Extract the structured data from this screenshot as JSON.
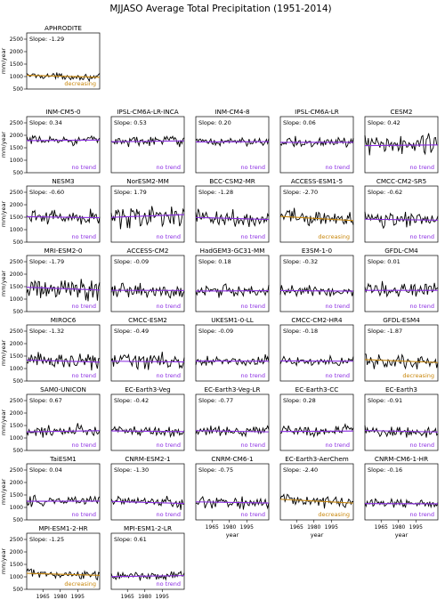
{
  "figure": {
    "title": "MJJASO Average Total Precipitation (1951-2014)",
    "ylabel": "mm/year",
    "xlabel": "year"
  },
  "chart_data": {
    "type": "line",
    "x_range": [
      1951,
      2014
    ],
    "ylim": [
      500,
      2750
    ],
    "xticks": [
      1965,
      1980,
      1995
    ],
    "yticks": [
      500,
      1000,
      1500,
      2000,
      2500
    ],
    "colors": {
      "series": "#000000",
      "no_trend": "#8a2be2",
      "decreasing": "#c8860a"
    },
    "panels": [
      {
        "name": "APHRODITE",
        "slope_label": "Slope: -1.29",
        "trend": "decreasing",
        "mean": 1010,
        "amp": 60,
        "slope": -1.29
      },
      {
        "name": "INM-CM5-0",
        "slope_label": "Slope: 0.34",
        "trend": "no trend",
        "mean": 1800,
        "amp": 90,
        "slope": 0.34
      },
      {
        "name": "IPSL-CM6A-LR-INCA",
        "slope_label": "Slope: 0.53",
        "trend": "no trend",
        "mean": 1760,
        "amp": 110,
        "slope": 0.53
      },
      {
        "name": "INM-CM4-8",
        "slope_label": "Slope: 0.20",
        "trend": "no trend",
        "mean": 1740,
        "amp": 85,
        "slope": 0.2
      },
      {
        "name": "IPSL-CM6A-LR",
        "slope_label": "Slope: 0.06",
        "trend": "no trend",
        "mean": 1720,
        "amp": 100,
        "slope": 0.06
      },
      {
        "name": "CESM2",
        "slope_label": "Slope: 0.42",
        "trend": "no trend",
        "mean": 1600,
        "amp": 230,
        "slope": 0.42
      },
      {
        "name": "NESM3",
        "slope_label": "Slope: -0.60",
        "trend": "no trend",
        "mean": 1500,
        "amp": 150,
        "slope": -0.6
      },
      {
        "name": "NorESM2-MM",
        "slope_label": "Slope: 1.79",
        "trend": "no trend",
        "mean": 1550,
        "amp": 230,
        "slope": 1.79
      },
      {
        "name": "BCC-CSM2-MR",
        "slope_label": "Slope: -1.28",
        "trend": "no trend",
        "mean": 1450,
        "amp": 160,
        "slope": -1.28
      },
      {
        "name": "ACCESS-ESM1-5",
        "slope_label": "Slope: -2.70",
        "trend": "decreasing",
        "mean": 1450,
        "amp": 180,
        "slope": -2.7
      },
      {
        "name": "CMCC-CM2-SR5",
        "slope_label": "Slope: -0.62",
        "trend": "no trend",
        "mean": 1400,
        "amp": 130,
        "slope": -0.62
      },
      {
        "name": "MRI-ESM2-0",
        "slope_label": "Slope: -1.79",
        "trend": "no trend",
        "mean": 1420,
        "amp": 200,
        "slope": -1.79
      },
      {
        "name": "ACCESS-CM2",
        "slope_label": "Slope: -0.09",
        "trend": "no trend",
        "mean": 1350,
        "amp": 130,
        "slope": -0.09
      },
      {
        "name": "HadGEM3-GC31-MM",
        "slope_label": "Slope: 0.18",
        "trend": "no trend",
        "mean": 1330,
        "amp": 110,
        "slope": 0.18
      },
      {
        "name": "E3SM-1-0",
        "slope_label": "Slope: -0.32",
        "trend": "no trend",
        "mean": 1330,
        "amp": 100,
        "slope": -0.32
      },
      {
        "name": "GFDL-CM4",
        "slope_label": "Slope: 0.01",
        "trend": "no trend",
        "mean": 1350,
        "amp": 170,
        "slope": 0.01
      },
      {
        "name": "MIROC6",
        "slope_label": "Slope: -1.32",
        "trend": "no trend",
        "mean": 1300,
        "amp": 160,
        "slope": -1.32
      },
      {
        "name": "CMCC-ESM2",
        "slope_label": "Slope: -0.49",
        "trend": "no trend",
        "mean": 1280,
        "amp": 150,
        "slope": -0.49
      },
      {
        "name": "UKESM1-0-LL",
        "slope_label": "Slope: -0.09",
        "trend": "no trend",
        "mean": 1300,
        "amp": 100,
        "slope": -0.09
      },
      {
        "name": "CMCC-CM2-HR4",
        "slope_label": "Slope: -0.18",
        "trend": "no trend",
        "mean": 1300,
        "amp": 110,
        "slope": -0.18
      },
      {
        "name": "GFDL-ESM4",
        "slope_label": "Slope: -1.87",
        "trend": "decreasing",
        "mean": 1300,
        "amp": 160,
        "slope": -1.87
      },
      {
        "name": "SAM0-UNICON",
        "slope_label": "Slope: 0.67",
        "trend": "no trend",
        "mean": 1270,
        "amp": 110,
        "slope": 0.67
      },
      {
        "name": "EC-Earth3-Veg",
        "slope_label": "Slope: -0.42",
        "trend": "no trend",
        "mean": 1270,
        "amp": 100,
        "slope": -0.42
      },
      {
        "name": "EC-Earth3-Veg-LR",
        "slope_label": "Slope: -0.77",
        "trend": "no trend",
        "mean": 1270,
        "amp": 120,
        "slope": -0.77
      },
      {
        "name": "EC-Earth3-CC",
        "slope_label": "Slope: 0.28",
        "trend": "no trend",
        "mean": 1270,
        "amp": 120,
        "slope": 0.28
      },
      {
        "name": "EC-Earth3",
        "slope_label": "Slope: -0.91",
        "trend": "no trend",
        "mean": 1270,
        "amp": 110,
        "slope": -0.91
      },
      {
        "name": "TaiESM1",
        "slope_label": "Slope: 0.04",
        "trend": "no trend",
        "mean": 1250,
        "amp": 110,
        "slope": 0.04
      },
      {
        "name": "CNRM-ESM2-1",
        "slope_label": "Slope: -1.30",
        "trend": "no trend",
        "mean": 1200,
        "amp": 110,
        "slope": -1.3
      },
      {
        "name": "CNRM-CM6-1",
        "slope_label": "Slope: -0.75",
        "trend": "no trend",
        "mean": 1200,
        "amp": 110,
        "slope": -0.75
      },
      {
        "name": "EC-Earth3-AerChem",
        "slope_label": "Slope: -2.40",
        "trend": "decreasing",
        "mean": 1250,
        "amp": 110,
        "slope": -2.4
      },
      {
        "name": "CNRM-CM6-1-HR",
        "slope_label": "Slope: -0.16",
        "trend": "no trend",
        "mean": 1150,
        "amp": 80,
        "slope": -0.16
      },
      {
        "name": "MPI-ESM1-2-HR",
        "slope_label": "Slope: -1.25",
        "trend": "decreasing",
        "mean": 1100,
        "amp": 80,
        "slope": -1.25
      },
      {
        "name": "MPI-ESM1-2-LR",
        "slope_label": "Slope: 0.61",
        "trend": "no trend",
        "mean": 1030,
        "amp": 90,
        "slope": 0.61
      }
    ]
  }
}
